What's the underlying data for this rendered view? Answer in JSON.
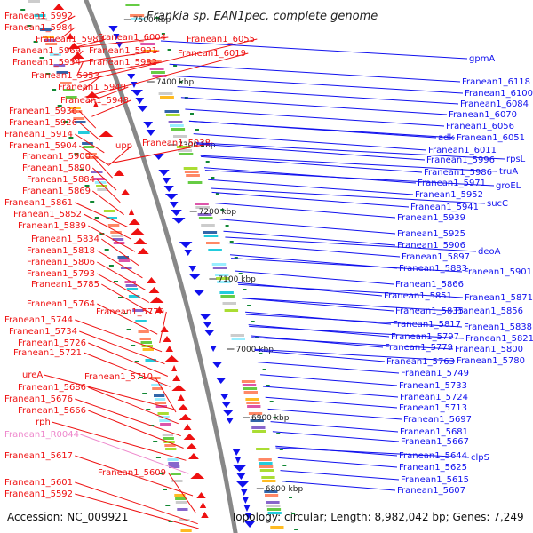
{
  "title": "Frankia sp. EAN1pec, complete genome",
  "accession": "Accession: NC_009921",
  "topology": "Topology: circular; Length: 8,982,042 bp; Genes: 7,249",
  "colors": {
    "forward": "#ee1111",
    "reverse": "#1111ee",
    "rna": "#ee88cc",
    "backbone": "#888888"
  },
  "ticks": [
    "7500 kbp",
    "7400 kbp",
    "7300 kbp",
    "7200 kbp",
    "7100 kbp",
    "7000 kbp",
    "6900 kbp",
    "6800 kbp"
  ],
  "left_labels": [
    "Franean1_5992",
    "Franean1_5984",
    "Franean1_5983",
    "Franean1_6004",
    "Franean1_5969",
    "Franean1_5991",
    "Franean1_5954",
    "Franean1_5982",
    "Franean1_5953",
    "Franean1_5949",
    "Franean1_5948",
    "Franean1_5936",
    "Franean1_5926",
    "Franean1_5914",
    "Franean1_5904",
    "upp",
    "Franean1_5938",
    "Franean1_5900",
    "Franean1_5890",
    "Franean1_5884",
    "Franean1_5869",
    "Franean1_5861",
    "Franean1_5852",
    "Franean1_5839",
    "Franean1_5834",
    "Franean1_5818",
    "Franean1_5806",
    "Franean1_5793",
    "Franean1_5785",
    "Franean1_5764",
    "Franean1_5770",
    "Franean1_5744",
    "Franean1_5734",
    "Franean1_5726",
    "Franean1_5721",
    "ureA",
    "Franean1_5710",
    "Franean1_5686",
    "Franean1_5676",
    "Franean1_5666",
    "rph",
    "Franean1_R0044",
    "Franean1_5617",
    "Franean1_5609",
    "Franean1_5601",
    "Franean1_5592",
    "Franean1_6055",
    "Franean1_6019"
  ],
  "right_labels": [
    "gpmA",
    "Franean1_6118",
    "Franean1_6100",
    "Franean1_6084",
    "Franean1_6070",
    "Franean1_6056",
    "adk",
    "Franean1_6051",
    "Franean1_6011",
    "rpsL",
    "Franean1_5996",
    "truA",
    "Franean1_5986",
    "groEL",
    "Franean1_5971",
    "sucC",
    "Franean1_5952",
    "Franean1_5941",
    "Franean1_5939",
    "Franean1_5925",
    "deoA",
    "Franean1_5906",
    "Franean1_5897",
    "Franean1_5901",
    "Franean1_5883",
    "Franean1_5866",
    "Franean1_5871",
    "Franean1_5851",
    "Franean1_5856",
    "Franean1_5835",
    "Franean1_5838",
    "Franean1_5817",
    "Franean1_5821",
    "Franean1_5797",
    "Franean1_5800",
    "Franean1_5779",
    "Franean1_5780",
    "Franean1_5763",
    "Franean1_5749",
    "Franean1_5733",
    "Franean1_5724",
    "Franean1_5713",
    "Franean1_5697",
    "Franean1_5681",
    "Franean1_5667",
    "clpS",
    "Franean1_5644",
    "Franean1_5625",
    "Franean1_5615",
    "Franean1_5607"
  ]
}
